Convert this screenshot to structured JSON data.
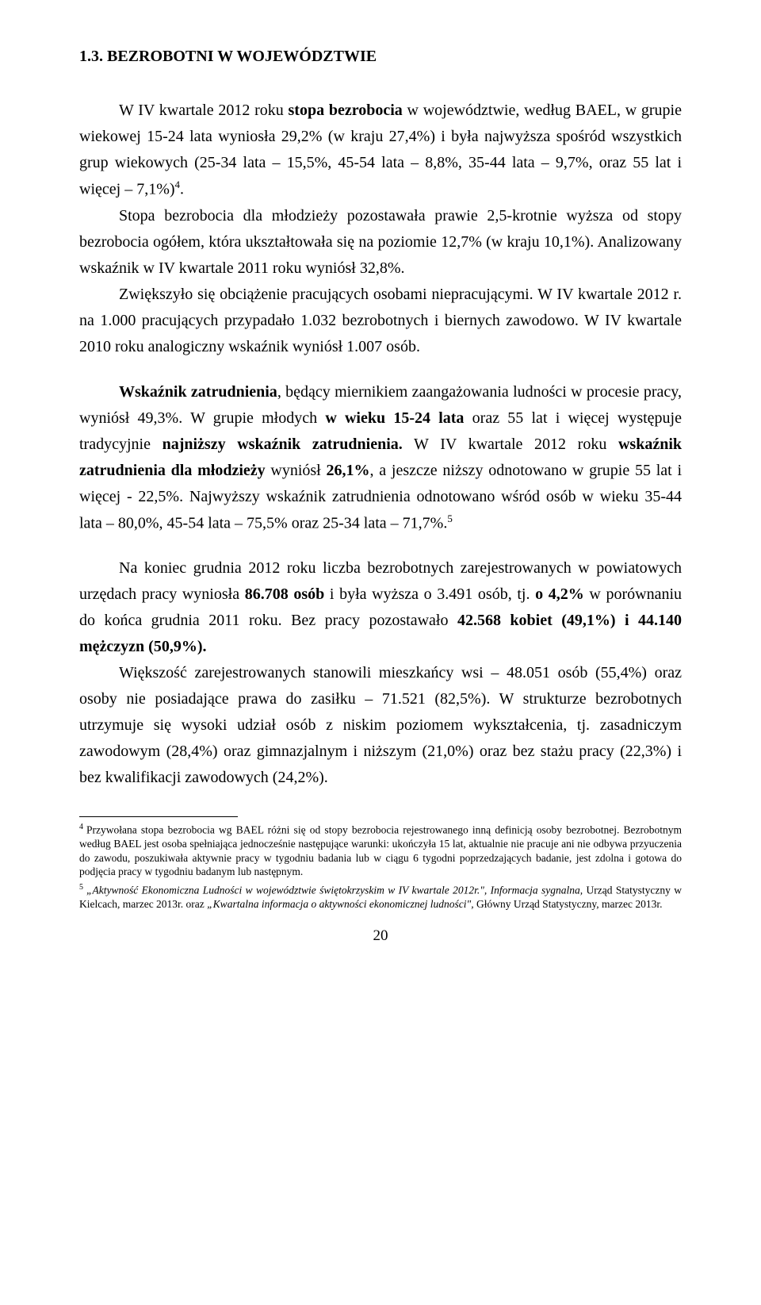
{
  "heading": "1.3. BEZROBOTNI W WOJEWÓDZTWIE",
  "p1_a": "W IV kwartale 2012 roku ",
  "p1_b": "stopa bezrobocia",
  "p1_c": " w województwie, według BAEL, w grupie wiekowej 15-24 lata wyniosła 29,2% (w kraju 27,4%) i była najwyższa spośród wszystkich grup wiekowych (25-34 lata – 15,5%, 45-54 lata – 8,8%, 35-44 lata – 9,7%, oraz 55 lat i więcej – 7,1%)",
  "p1_sup": "4",
  "p1_d": ".",
  "p2": "Stopa bezrobocia dla młodzieży pozostawała prawie 2,5-krotnie wyższa od stopy bezrobocia ogółem, która ukształtowała się na poziomie 12,7% (w kraju 10,1%). Analizowany wskaźnik w IV kwartale 2011 roku wyniósł 32,8%.",
  "p3": "Zwiększyło się obciążenie pracujących osobami niepracującymi. W IV kwartale 2012 r. na 1.000 pracujących przypadało 1.032 bezrobotnych i biernych zawodowo. W IV kwartale 2010 roku analogiczny wskaźnik wyniósł 1.007 osób.",
  "p4_a": "Wskaźnik zatrudnienia",
  "p4_b": ", będący miernikiem zaangażowania ludności w procesie pracy, wyniósł 49,3%. W grupie młodych ",
  "p4_c": "w wieku 15-24 lata",
  "p4_d": " oraz 55 lat i więcej występuje tradycyjnie ",
  "p4_e": "najniższy wskaźnik zatrudnienia.",
  "p4_f": " W IV kwartale 2012 roku ",
  "p4_g": "wskaźnik zatrudnienia dla młodzieży",
  "p4_h": " wyniósł ",
  "p4_i": "26,1%",
  "p4_j": ", a jeszcze niższy odnotowano w grupie 55 lat i więcej - 22,5%. Najwyższy wskaźnik zatrudnienia odnotowano wśród osób w wieku 35-44 lata – 80,0%, 45-54 lata – 75,5% oraz 25-34 lata – 71,7%.",
  "p4_sup": "5",
  "p5_a": "Na koniec grudnia 2012 roku liczba bezrobotnych zarejestrowanych w powiatowych urzędach pracy wyniosła ",
  "p5_b": "86.708 osób",
  "p5_c": " i była wyższa o 3.491 osób, tj. ",
  "p5_d": "o 4,2%",
  "p5_e": " w porównaniu do końca grudnia 2011 roku. Bez pracy pozostawało ",
  "p5_f": "42.568 kobiet (49,1%) i 44.140 mężczyzn (50,9%).",
  "p6": "Większość zarejestrowanych stanowili mieszkańcy wsi – 48.051 osób (55,4%) oraz osoby nie posiadające prawa do zasiłku – 71.521 (82,5%). W strukturze bezrobotnych utrzymuje się wysoki udział osób z niskim poziomem wykształcenia, tj. zasadniczym zawodowym (28,4%) oraz gimnazjalnym i niższym (21,0%) oraz bez stażu pracy (22,3%) i bez kwalifikacji zawodowych (24,2%).",
  "fn4_marker": "4",
  "fn4": "Przywołana stopa bezrobocia wg BAEL różni się od stopy bezrobocia rejestrowanego inną definicją osoby bezrobotnej. Bezrobotnym według BAEL jest osoba spełniająca jednocześnie następujące warunki: ukończyła 15 lat, aktualnie nie pracuje ani nie odbywa przyuczenia do zawodu, poszukiwała aktywnie pracy w tygodniu badania lub w ciągu 6 tygodni poprzedzających badanie, jest zdolna i gotowa do podjęcia pracy w tygodniu badanym lub następnym.",
  "fn5_marker": "5",
  "fn5_a": "„Aktywność Ekonomiczna Ludności w województwie świętokrzyskim w IV kwartale 2012r.\", Informacja sygnalna,",
  "fn5_b": " Urząd Statystyczny w Kielcach, marzec 2013r. oraz ",
  "fn5_c": "„Kwartalna informacja o aktywności ekonomicznej ludności\",",
  "fn5_d": " Główny Urząd Statystyczny, marzec 2013r.",
  "page_number": "20"
}
